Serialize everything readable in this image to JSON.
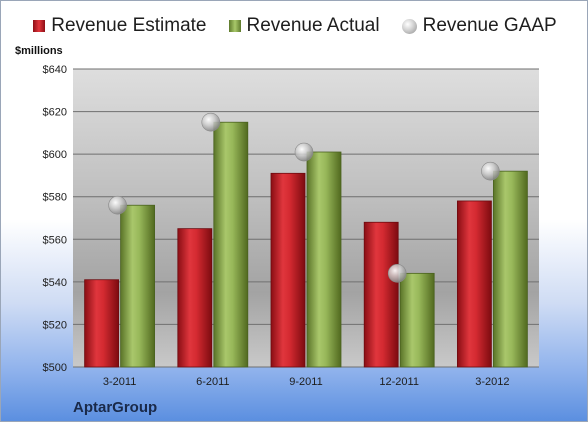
{
  "chart_data": {
    "type": "bar",
    "ylabel": "$millions",
    "ylim": [
      500,
      640
    ],
    "yticks": [
      "$500",
      "$520",
      "$540",
      "$560",
      "$580",
      "$600",
      "$620",
      "$640"
    ],
    "ytick_values": [
      500,
      520,
      540,
      560,
      580,
      600,
      620,
      640
    ],
    "categories": [
      "3-2011",
      "6-2011",
      "9-2011",
      "12-2011",
      "3-2012"
    ],
    "series": [
      {
        "name": "Revenue Estimate",
        "type": "bar",
        "values": [
          541,
          565,
          591,
          568,
          578
        ]
      },
      {
        "name": "Revenue Actual",
        "type": "bar",
        "values": [
          576,
          615,
          601,
          544,
          592
        ]
      },
      {
        "name": "Revenue GAAP",
        "type": "scatter",
        "values": [
          576,
          615,
          601,
          544,
          592
        ]
      }
    ],
    "grid": true,
    "legend": "top"
  },
  "company": "AptarGroup",
  "colors": {
    "estimate": "#c8252c",
    "actual": "#8fac52",
    "gaap": "#b8b8b8"
  }
}
